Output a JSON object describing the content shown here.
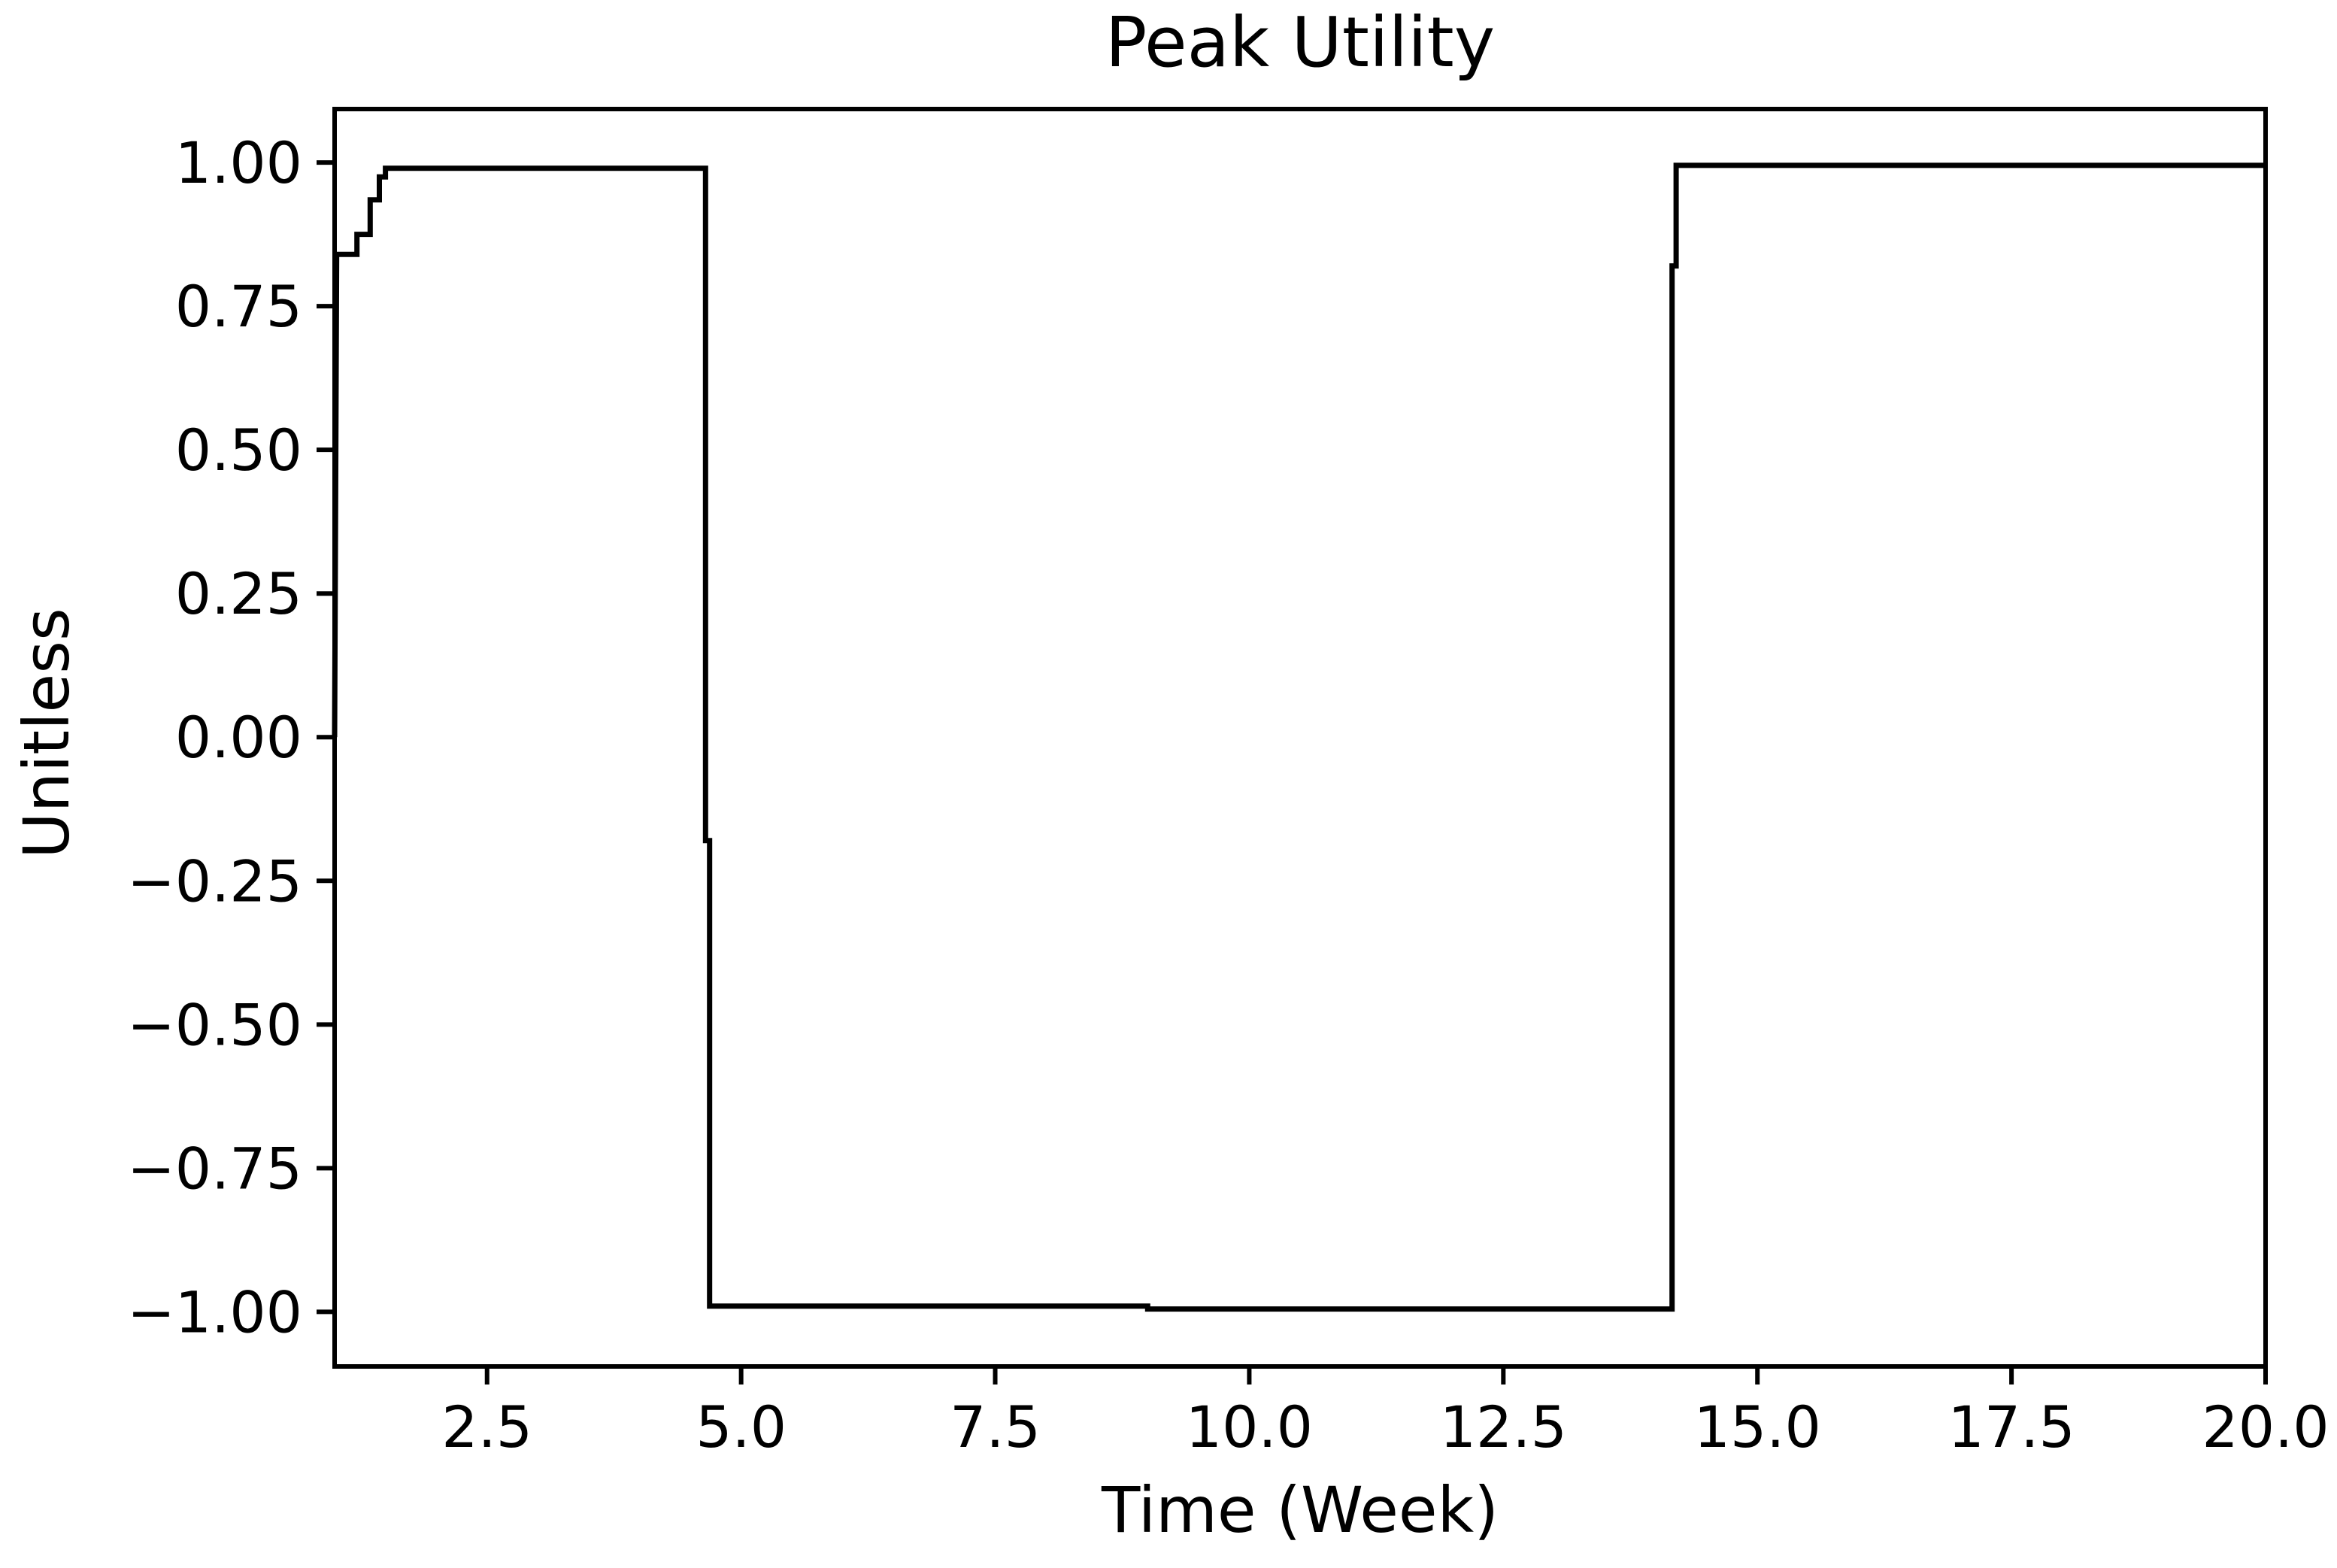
{
  "figure": {
    "background_color": "#ffffff"
  },
  "chart_data": {
    "type": "line",
    "style": "step",
    "title": "Peak Utility",
    "xlabel": "Time (Week)",
    "ylabel": "Unitless",
    "line_color": "#000000",
    "axis_color": "#000000",
    "grid": false,
    "legend_position": "none",
    "xlim": [
      1.0,
      20.0
    ],
    "ylim": [
      -1.095,
      1.093
    ],
    "x_ticks": [
      {
        "value": 2.5,
        "label": "2.5"
      },
      {
        "value": 5.0,
        "label": "5.0"
      },
      {
        "value": 7.5,
        "label": "7.5"
      },
      {
        "value": 10.0,
        "label": "10.0"
      },
      {
        "value": 12.5,
        "label": "12.5"
      },
      {
        "value": 15.0,
        "label": "15.0"
      },
      {
        "value": 17.5,
        "label": "17.5"
      },
      {
        "value": 20.0,
        "label": "20.0"
      }
    ],
    "y_ticks": [
      {
        "value": 1.0,
        "label": "1.00"
      },
      {
        "value": 0.75,
        "label": "0.75"
      },
      {
        "value": 0.5,
        "label": "0.50"
      },
      {
        "value": 0.25,
        "label": "0.25"
      },
      {
        "value": 0.0,
        "label": "0.00"
      },
      {
        "value": -0.25,
        "label": "−0.25"
      },
      {
        "value": -0.5,
        "label": "−0.50"
      },
      {
        "value": -0.75,
        "label": "−0.75"
      },
      {
        "value": -1.0,
        "label": "−1.00"
      }
    ],
    "points": [
      [
        1.0,
        0.0
      ],
      [
        1.02,
        0.84
      ],
      [
        1.22,
        0.84
      ],
      [
        1.22,
        0.875
      ],
      [
        1.35,
        0.875
      ],
      [
        1.35,
        0.935
      ],
      [
        1.44,
        0.935
      ],
      [
        1.44,
        0.975
      ],
      [
        1.5,
        0.975
      ],
      [
        1.5,
        0.99
      ],
      [
        4.65,
        0.99
      ],
      [
        4.65,
        -0.18
      ],
      [
        4.69,
        -0.18
      ],
      [
        4.69,
        -0.99
      ],
      [
        9.0,
        -0.99
      ],
      [
        9.0,
        -0.995
      ],
      [
        14.16,
        -0.995
      ],
      [
        14.16,
        0.82
      ],
      [
        14.2,
        0.82
      ],
      [
        14.2,
        0.995
      ],
      [
        20.0,
        0.995
      ]
    ]
  }
}
